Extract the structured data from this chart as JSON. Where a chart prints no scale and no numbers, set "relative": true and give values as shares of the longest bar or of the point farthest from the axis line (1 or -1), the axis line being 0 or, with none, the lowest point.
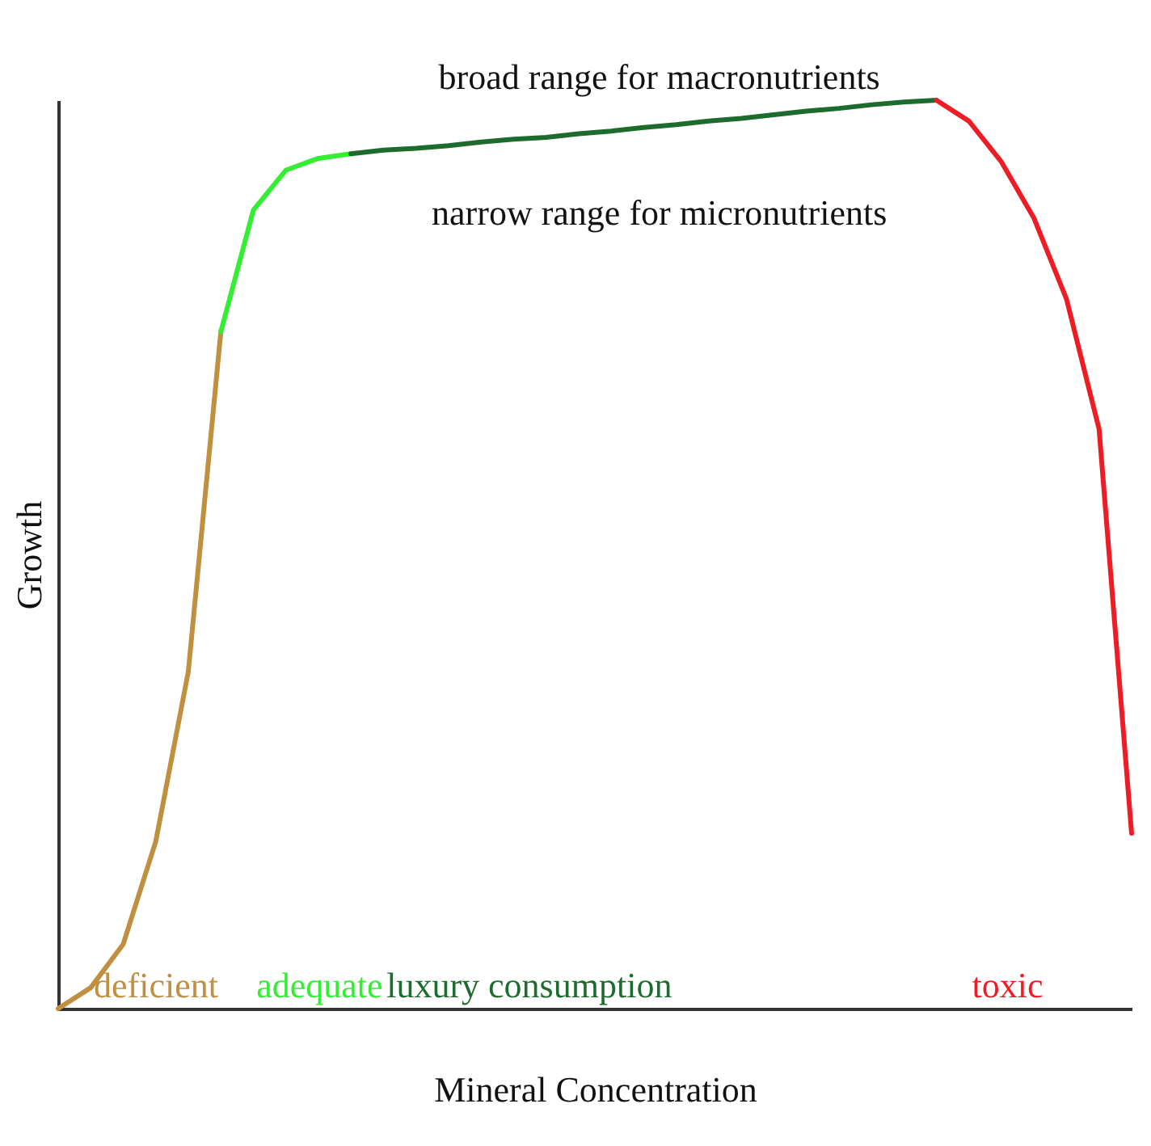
{
  "chart_data": {
    "type": "line",
    "relative": true,
    "xlabel": "Mineral Concentration",
    "ylabel": "Growth",
    "annotations": [
      "broad range for macronutrients",
      "narrow range for micronutrients"
    ],
    "categories": [
      null,
      null,
      null,
      null,
      null,
      null,
      null,
      null,
      null,
      null,
      null,
      null,
      null,
      null,
      null,
      null,
      null,
      null,
      null,
      null,
      null,
      null,
      null,
      null,
      null,
      null,
      null,
      null,
      null,
      null,
      null,
      null,
      null,
      null
    ],
    "series": [
      {
        "name": "deficient",
        "color": "#c09040",
        "values": [
          0,
          0.023,
          0.071,
          0.184,
          0.371,
          0.745,
          null,
          null,
          null,
          null,
          null,
          null,
          null,
          null,
          null,
          null,
          null,
          null,
          null,
          null,
          null,
          null,
          null,
          null,
          null,
          null,
          null,
          null,
          null,
          null,
          null,
          null,
          null,
          null
        ]
      },
      {
        "name": "adequate",
        "color": "#33ee33",
        "values": [
          null,
          null,
          null,
          null,
          null,
          0.745,
          0.879,
          0.923,
          0.936,
          0.941,
          null,
          null,
          null,
          null,
          null,
          null,
          null,
          null,
          null,
          null,
          null,
          null,
          null,
          null,
          null,
          null,
          null,
          null,
          null,
          null,
          null,
          null,
          null,
          null
        ]
      },
      {
        "name": "luxury consumption",
        "color": "#1e6b2e",
        "values": [
          null,
          null,
          null,
          null,
          null,
          null,
          null,
          null,
          null,
          0.941,
          0.945,
          0.947,
          0.95,
          0.954,
          0.957,
          0.959,
          0.963,
          0.966,
          0.97,
          0.973,
          0.977,
          0.98,
          0.984,
          0.988,
          0.991,
          0.995,
          0.998,
          1,
          null,
          null,
          null,
          null,
          null,
          null
        ]
      },
      {
        "name": "toxic",
        "color": "#ee1c24",
        "values": [
          null,
          null,
          null,
          null,
          null,
          null,
          null,
          null,
          null,
          null,
          null,
          null,
          null,
          null,
          null,
          null,
          null,
          null,
          null,
          null,
          null,
          null,
          null,
          null,
          null,
          null,
          null,
          1,
          0.977,
          0.932,
          0.87,
          0.781,
          0.638,
          0.193
        ]
      }
    ]
  }
}
